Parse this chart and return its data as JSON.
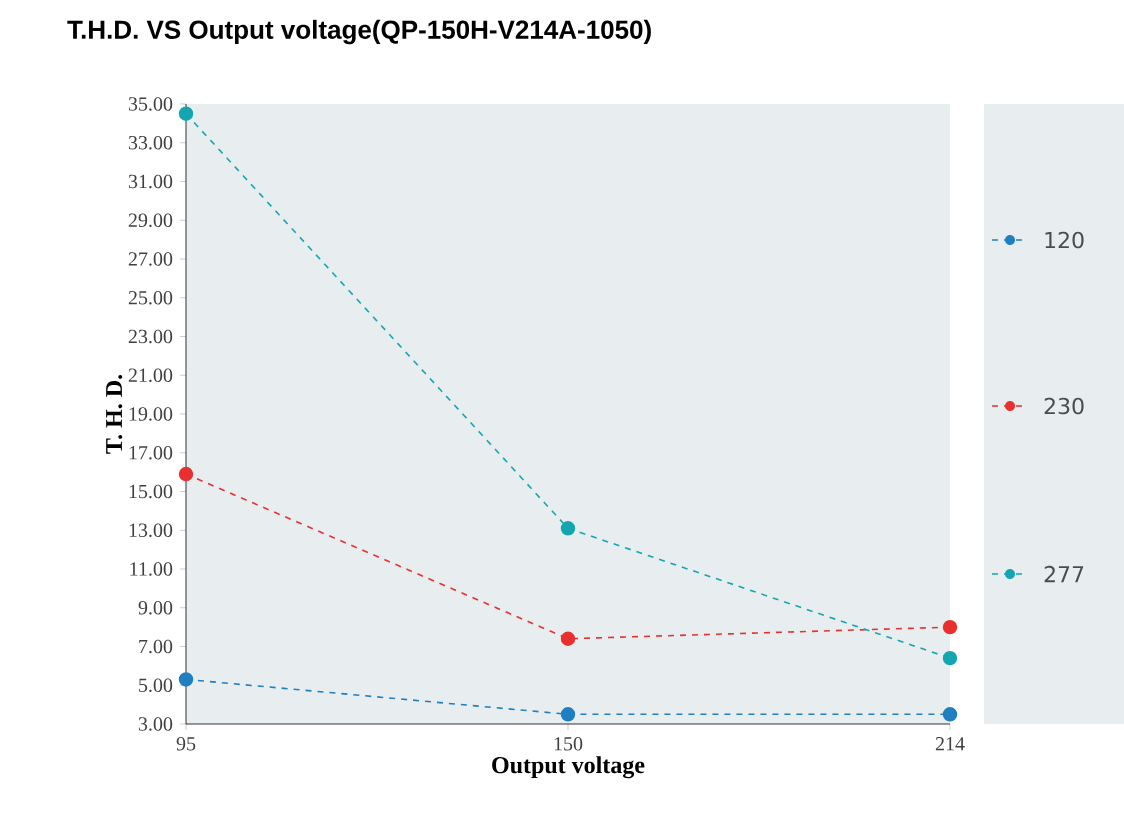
{
  "chart_data": {
    "type": "line",
    "title": "T.H.D. VS Output voltage(QP-150H-V214A-1050)",
    "xlabel": "Output voltage",
    "ylabel": "T. H. D.",
    "categories": [
      "95",
      "150",
      "214"
    ],
    "series": [
      {
        "name": "120",
        "color": "#1f7fc0",
        "values": [
          5.3,
          3.5,
          3.5
        ]
      },
      {
        "name": "230",
        "color": "#e8312f",
        "values": [
          15.9,
          7.4,
          8.0
        ]
      },
      {
        "name": "277",
        "color": "#13a6b0",
        "values": [
          34.5,
          13.1,
          6.4
        ]
      }
    ],
    "ylim": [
      3,
      35
    ],
    "yticks": [
      {
        "value": 3,
        "label": "3.00"
      },
      {
        "value": 5,
        "label": "5.00"
      },
      {
        "value": 7,
        "label": "7.00"
      },
      {
        "value": 9,
        "label": "9.00"
      },
      {
        "value": 11,
        "label": "11.00"
      },
      {
        "value": 13,
        "label": "13.00"
      },
      {
        "value": 15,
        "label": "15.00"
      },
      {
        "value": 17,
        "label": "17.00"
      },
      {
        "value": 19,
        "label": "19.00"
      },
      {
        "value": 21,
        "label": "21.00"
      },
      {
        "value": 23,
        "label": "23.00"
      },
      {
        "value": 25,
        "label": "25.00"
      },
      {
        "value": 27,
        "label": "27.00"
      },
      {
        "value": 29,
        "label": "29.00"
      },
      {
        "value": 31,
        "label": "31.00"
      },
      {
        "value": 33,
        "label": "33.00"
      },
      {
        "value": 35,
        "label": "35.00"
      }
    ],
    "grid": false,
    "legend": "right",
    "marker": "circle",
    "line_style": "dashed"
  }
}
